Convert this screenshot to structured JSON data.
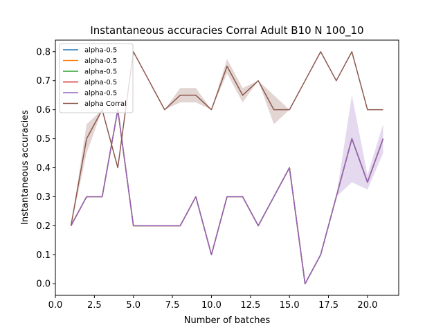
{
  "chart_data": {
    "type": "line",
    "title": "Instantaneous accuracies Corral Adult B10 N 100_10",
    "xlabel": "Number of batches",
    "ylabel": "Instantaneous accuracies",
    "xlim": [
      0,
      22.0
    ],
    "ylim": [
      -0.04,
      0.84
    ],
    "xticks": [
      0.0,
      2.5,
      5.0,
      7.5,
      10.0,
      12.5,
      15.0,
      17.5,
      20.0
    ],
    "xtick_labels": [
      "0.0",
      "2.5",
      "5.0",
      "7.5",
      "10.0",
      "12.5",
      "15.0",
      "17.5",
      "20.0"
    ],
    "yticks": [
      0.0,
      0.1,
      0.2,
      0.3,
      0.4,
      0.5,
      0.6,
      0.7,
      0.8
    ],
    "ytick_labels": [
      "0.0",
      "0.1",
      "0.2",
      "0.3",
      "0.4",
      "0.5",
      "0.6",
      "0.7",
      "0.8"
    ],
    "grid": false,
    "legend_position": "top-left",
    "x": [
      1,
      2,
      3,
      4,
      5,
      6,
      7,
      8,
      9,
      10,
      11,
      12,
      13,
      14,
      15,
      16,
      17,
      18,
      19,
      20,
      21
    ],
    "series": [
      {
        "name": "alpha-0.5",
        "color": "#1f77b4",
        "values": [
          0.2,
          0.3,
          0.3,
          0.6,
          0.2,
          0.2,
          0.2,
          0.2,
          0.3,
          0.1,
          0.3,
          0.3,
          0.2,
          0.3,
          0.4,
          0.0,
          0.1,
          0.3,
          0.5,
          0.35,
          0.5
        ]
      },
      {
        "name": "alpha-0.5",
        "color": "#ff7f0e",
        "values": [
          0.2,
          0.3,
          0.3,
          0.6,
          0.2,
          0.2,
          0.2,
          0.2,
          0.3,
          0.1,
          0.3,
          0.3,
          0.2,
          0.3,
          0.4,
          0.0,
          0.1,
          0.3,
          0.5,
          0.35,
          0.5
        ]
      },
      {
        "name": "alpha-0.5",
        "color": "#2ca02c",
        "values": [
          0.2,
          0.3,
          0.3,
          0.6,
          0.2,
          0.2,
          0.2,
          0.2,
          0.3,
          0.1,
          0.3,
          0.3,
          0.2,
          0.3,
          0.4,
          0.0,
          0.1,
          0.3,
          0.5,
          0.35,
          0.5
        ]
      },
      {
        "name": "alpha-0.5",
        "color": "#d62728",
        "values": [
          0.2,
          0.3,
          0.3,
          0.6,
          0.2,
          0.2,
          0.2,
          0.2,
          0.3,
          0.1,
          0.3,
          0.3,
          0.2,
          0.3,
          0.4,
          0.0,
          0.1,
          0.3,
          0.5,
          0.35,
          0.5
        ]
      },
      {
        "name": "alpha-0.5",
        "color": "#9467bd",
        "values": [
          0.2,
          0.3,
          0.3,
          0.6,
          0.2,
          0.2,
          0.2,
          0.2,
          0.3,
          0.1,
          0.3,
          0.3,
          0.2,
          0.3,
          0.4,
          0.0,
          0.1,
          0.3,
          0.5,
          0.35,
          0.5
        ],
        "band_low": [
          0.2,
          0.3,
          0.3,
          0.6,
          0.2,
          0.2,
          0.2,
          0.2,
          0.3,
          0.1,
          0.3,
          0.3,
          0.2,
          0.3,
          0.4,
          0.0,
          0.1,
          0.3,
          0.35,
          0.325,
          0.45
        ],
        "band_high": [
          0.2,
          0.3,
          0.3,
          0.6,
          0.2,
          0.2,
          0.2,
          0.2,
          0.3,
          0.1,
          0.3,
          0.3,
          0.2,
          0.3,
          0.4,
          0.0,
          0.1,
          0.3,
          0.65,
          0.375,
          0.55
        ]
      },
      {
        "name": "alpha Corral",
        "color": "#8c564b",
        "values": [
          0.2,
          0.5,
          0.6,
          0.4,
          0.8,
          0.7,
          0.6,
          0.65,
          0.65,
          0.6,
          0.75,
          0.65,
          0.7,
          0.6,
          0.6,
          0.7,
          0.8,
          0.7,
          0.8,
          0.6,
          0.6
        ],
        "band_low": [
          0.2,
          0.45,
          0.6,
          0.4,
          0.8,
          0.7,
          0.6,
          0.625,
          0.625,
          0.6,
          0.725,
          0.625,
          0.7,
          0.55,
          0.6,
          0.7,
          0.8,
          0.7,
          0.8,
          0.6,
          0.6
        ],
        "band_high": [
          0.2,
          0.55,
          0.6,
          0.4,
          0.8,
          0.7,
          0.6,
          0.675,
          0.675,
          0.6,
          0.775,
          0.675,
          0.7,
          0.65,
          0.6,
          0.7,
          0.8,
          0.7,
          0.8,
          0.6,
          0.6
        ]
      }
    ]
  }
}
